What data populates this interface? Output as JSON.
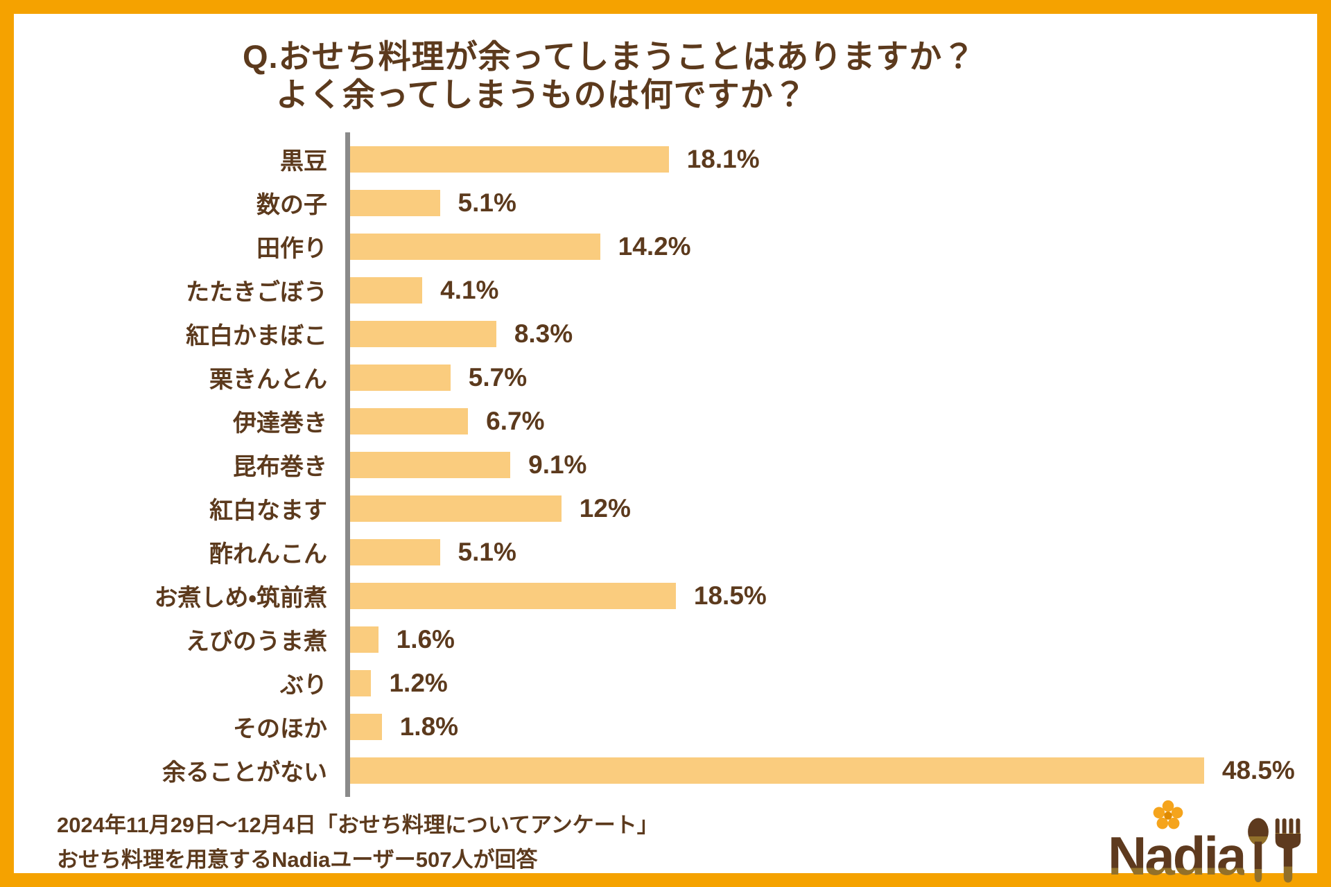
{
  "header": {
    "title_line1": "Q.おせち料理が余ってしまうことはありますか？",
    "title_line2": "よく余ってしまうものは何ですか？"
  },
  "chart_data": {
    "type": "bar",
    "orientation": "horizontal",
    "title": "Q.おせち料理が余ってしまうことはありますか？ よく余ってしまうものは何ですか？",
    "categories": [
      "黒豆",
      "数の子",
      "田作り",
      "たたきごぼう",
      "紅白かまぼこ",
      "栗きんとん",
      "伊達巻き",
      "昆布巻き",
      "紅白なます",
      "酢れんこん",
      "お煮しめ・筑前煮",
      "えびのうま煮",
      "ぶり",
      "そのほか",
      "余ることがない"
    ],
    "values": [
      18.1,
      5.1,
      14.2,
      4.1,
      8.3,
      5.7,
      6.7,
      9.1,
      12,
      5.1,
      18.5,
      1.6,
      1.2,
      1.8,
      48.5
    ],
    "value_labels": [
      "18.1%",
      "5.1%",
      "14.2%",
      "4.1%",
      "8.3%",
      "5.7%",
      "6.7%",
      "9.1%",
      "12%",
      "5.1%",
      "18.5%",
      "1.6%",
      "1.2%",
      "1.8%",
      "48.5%"
    ],
    "xlabel": "",
    "ylabel": "",
    "xlim": [
      0,
      50
    ],
    "grid": false,
    "legend": "none",
    "bar_color": "#FACC7E",
    "axis_color": "#8A8A8A",
    "label_color": "#5C3A1D"
  },
  "footer": {
    "line1": "2024年11月29日〜12月4日「おせち料理についてアンケート」",
    "line2": "おせち料理を用意するNadiaユーザー507人が回答"
  },
  "logo": {
    "text": "Nadia",
    "flower_color": "#F5A41C",
    "flower_center_color": "#E08A00",
    "brand_brown": "#5E3A1E",
    "brand_olive": "#92702A"
  },
  "colors": {
    "frame": "#F5A200",
    "background": "#FFFFFF",
    "text": "#5C3A1D"
  }
}
